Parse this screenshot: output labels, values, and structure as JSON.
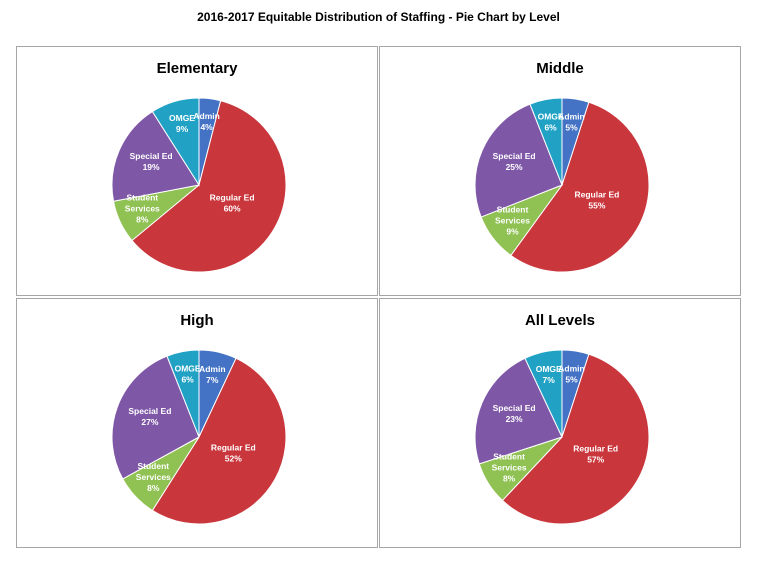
{
  "page": {
    "title": "2016-2017 Equitable Distribution of Staffing - Pie Chart by Level"
  },
  "chart_data": [
    {
      "type": "pie",
      "title": "Elementary",
      "slices": [
        {
          "name": "Admin",
          "value": 4,
          "label": "4%",
          "color": "#4472c4"
        },
        {
          "name": "Regular Ed",
          "value": 60,
          "label": "60%",
          "color": "#c9373d"
        },
        {
          "name": "Student Services",
          "value": 8,
          "label": "8%",
          "color": "#8fc153"
        },
        {
          "name": "Special Ed",
          "value": 19,
          "label": "19%",
          "color": "#7e57a6"
        },
        {
          "name": "OMGE",
          "value": 9,
          "label": "9%",
          "color": "#21a2c5"
        }
      ]
    },
    {
      "type": "pie",
      "title": "Middle",
      "slices": [
        {
          "name": "Admin",
          "value": 5,
          "label": "5%",
          "color": "#4472c4"
        },
        {
          "name": "Regular Ed",
          "value": 55,
          "label": "55%",
          "color": "#c9373d"
        },
        {
          "name": "Student Services",
          "value": 9,
          "label": "9%",
          "color": "#8fc153"
        },
        {
          "name": "Special Ed",
          "value": 25,
          "label": "25%",
          "color": "#7e57a6"
        },
        {
          "name": "OMGE",
          "value": 6,
          "label": "6%",
          "color": "#21a2c5"
        }
      ]
    },
    {
      "type": "pie",
      "title": "High",
      "slices": [
        {
          "name": "Admin",
          "value": 7,
          "label": "7%",
          "color": "#4472c4"
        },
        {
          "name": "Regular Ed",
          "value": 52,
          "label": "52%",
          "color": "#c9373d"
        },
        {
          "name": "Student Services",
          "value": 8,
          "label": "8%",
          "color": "#8fc153"
        },
        {
          "name": "Special Ed",
          "value": 27,
          "label": "27%",
          "color": "#7e57a6"
        },
        {
          "name": "OMGE",
          "value": 6,
          "label": "6%",
          "color": "#21a2c5"
        }
      ]
    },
    {
      "type": "pie",
      "title": "All Levels",
      "slices": [
        {
          "name": "Admin",
          "value": 5,
          "label": "5%",
          "color": "#4472c4"
        },
        {
          "name": "Regular Ed",
          "value": 57,
          "label": "57%",
          "color": "#c9373d"
        },
        {
          "name": "Student Services",
          "value": 8,
          "label": "8%",
          "color": "#8fc153"
        },
        {
          "name": "Special Ed",
          "value": 23,
          "label": "23%",
          "color": "#7e57a6"
        },
        {
          "name": "OMGE",
          "value": 7,
          "label": "7%",
          "color": "#21a2c5"
        }
      ]
    }
  ]
}
